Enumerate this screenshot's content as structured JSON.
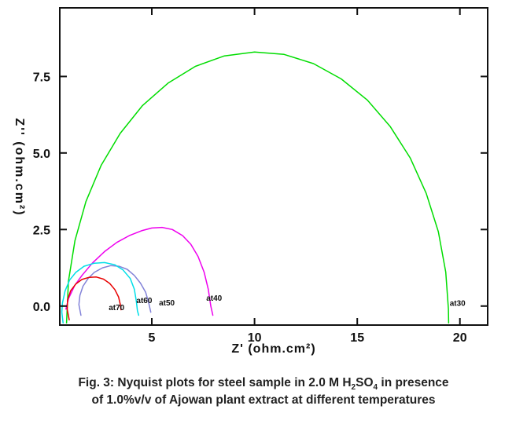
{
  "figure_caption": {
    "l1a": "Fig. 3: Nyquist plots for steel sample in 2.0 M H",
    "l1sub1": "2",
    "l1b": "SO",
    "l1sub2": "4",
    "l1c": " in presence",
    "l2": "of 1.0%v/v of Ajowan plant extract at different temperatures"
  },
  "chart_data": {
    "type": "line",
    "title": "",
    "xlabel": "Z' (ohm.cm²)",
    "ylabel": "Z'' (ohm.cm²)",
    "xlim": [
      0.52,
      21.35
    ],
    "ylim": [
      -0.62,
      9.74
    ],
    "x_ticks": [
      5,
      10,
      15,
      20
    ],
    "x_tick_labels": [
      "5",
      "10",
      "15",
      "20"
    ],
    "y_ticks": [
      0.0,
      2.5,
      5.0,
      7.5
    ],
    "y_tick_labels": [
      "0.0",
      "2.5",
      "5.0",
      "7.5"
    ],
    "grid": false,
    "legend": "none (curves labeled inline)",
    "frame_color": "#111111",
    "series": [
      {
        "name": "at30",
        "temperature_c": 30,
        "color": "#00dd00",
        "points": [
          [
            0.85,
            -0.55
          ],
          [
            0.94,
            0.81
          ],
          [
            1.26,
            2.14
          ],
          [
            1.79,
            3.41
          ],
          [
            2.53,
            4.59
          ],
          [
            3.46,
            5.64
          ],
          [
            4.55,
            6.55
          ],
          [
            5.79,
            7.28
          ],
          [
            7.12,
            7.83
          ],
          [
            8.53,
            8.17
          ],
          [
            10.0,
            8.3
          ],
          [
            11.44,
            8.22
          ],
          [
            12.87,
            7.92
          ],
          [
            14.22,
            7.42
          ],
          [
            15.49,
            6.73
          ],
          [
            16.61,
            5.86
          ],
          [
            17.58,
            4.84
          ],
          [
            18.36,
            3.68
          ],
          [
            18.95,
            2.43
          ],
          [
            19.31,
            1.11
          ],
          [
            19.44,
            -0.1
          ],
          [
            19.45,
            -0.55
          ]
        ]
      },
      {
        "name": "at40",
        "temperature_c": 40,
        "color": "#ee00ee",
        "points": [
          [
            0.82,
            -0.1
          ],
          [
            0.95,
            0.25
          ],
          [
            1.25,
            0.68
          ],
          [
            1.6,
            1.0
          ],
          [
            2.1,
            1.4
          ],
          [
            2.7,
            1.78
          ],
          [
            3.3,
            2.08
          ],
          [
            3.9,
            2.3
          ],
          [
            4.5,
            2.46
          ],
          [
            5.0,
            2.55
          ],
          [
            5.5,
            2.57
          ],
          [
            6.0,
            2.5
          ],
          [
            6.5,
            2.3
          ],
          [
            6.9,
            2.02
          ],
          [
            7.25,
            1.62
          ],
          [
            7.55,
            1.1
          ],
          [
            7.75,
            0.55
          ],
          [
            7.87,
            0.0
          ],
          [
            7.97,
            -0.3
          ]
        ]
      },
      {
        "name": "at50",
        "temperature_c": 50,
        "color": "#8282d8",
        "points": [
          [
            1.55,
            -0.3
          ],
          [
            1.45,
            0.05
          ],
          [
            1.5,
            0.35
          ],
          [
            1.65,
            0.65
          ],
          [
            1.9,
            0.9
          ],
          [
            2.2,
            1.1
          ],
          [
            2.6,
            1.25
          ],
          [
            3.0,
            1.32
          ],
          [
            3.4,
            1.3
          ],
          [
            3.8,
            1.2
          ],
          [
            4.15,
            1.0
          ],
          [
            4.45,
            0.75
          ],
          [
            4.7,
            0.45
          ],
          [
            4.85,
            0.1
          ],
          [
            4.95,
            -0.2
          ]
        ]
      },
      {
        "name": "at60",
        "temperature_c": 60,
        "color": "#00dfe8",
        "points": [
          [
            0.68,
            -0.55
          ],
          [
            0.62,
            -0.2
          ],
          [
            0.65,
            0.1
          ],
          [
            0.78,
            0.5
          ],
          [
            1.0,
            0.85
          ],
          [
            1.3,
            1.1
          ],
          [
            1.7,
            1.3
          ],
          [
            2.2,
            1.4
          ],
          [
            2.7,
            1.42
          ],
          [
            3.2,
            1.35
          ],
          [
            3.6,
            1.18
          ],
          [
            3.95,
            0.9
          ],
          [
            4.15,
            0.55
          ],
          [
            4.25,
            0.15
          ],
          [
            4.3,
            -0.15
          ],
          [
            4.36,
            -0.3
          ]
        ]
      },
      {
        "name": "at70",
        "temperature_c": 70,
        "color": "#e80000",
        "points": [
          [
            0.98,
            -0.45
          ],
          [
            0.88,
            -0.1
          ],
          [
            0.9,
            0.2
          ],
          [
            1.05,
            0.5
          ],
          [
            1.3,
            0.72
          ],
          [
            1.6,
            0.87
          ],
          [
            1.95,
            0.94
          ],
          [
            2.3,
            0.95
          ],
          [
            2.65,
            0.88
          ],
          [
            2.95,
            0.74
          ],
          [
            3.2,
            0.54
          ],
          [
            3.38,
            0.3
          ],
          [
            3.47,
            0.05
          ],
          [
            3.5,
            -0.12
          ]
        ]
      }
    ],
    "annotations": [
      {
        "text": "at70",
        "x": 2.9,
        "y": -0.05
      },
      {
        "text": "at60",
        "x": 4.25,
        "y": 0.18
      },
      {
        "text": "at50",
        "x": 5.35,
        "y": 0.1
      },
      {
        "text": "at40",
        "x": 7.65,
        "y": 0.25
      },
      {
        "text": "at30",
        "x": 19.5,
        "y": 0.08
      }
    ]
  }
}
